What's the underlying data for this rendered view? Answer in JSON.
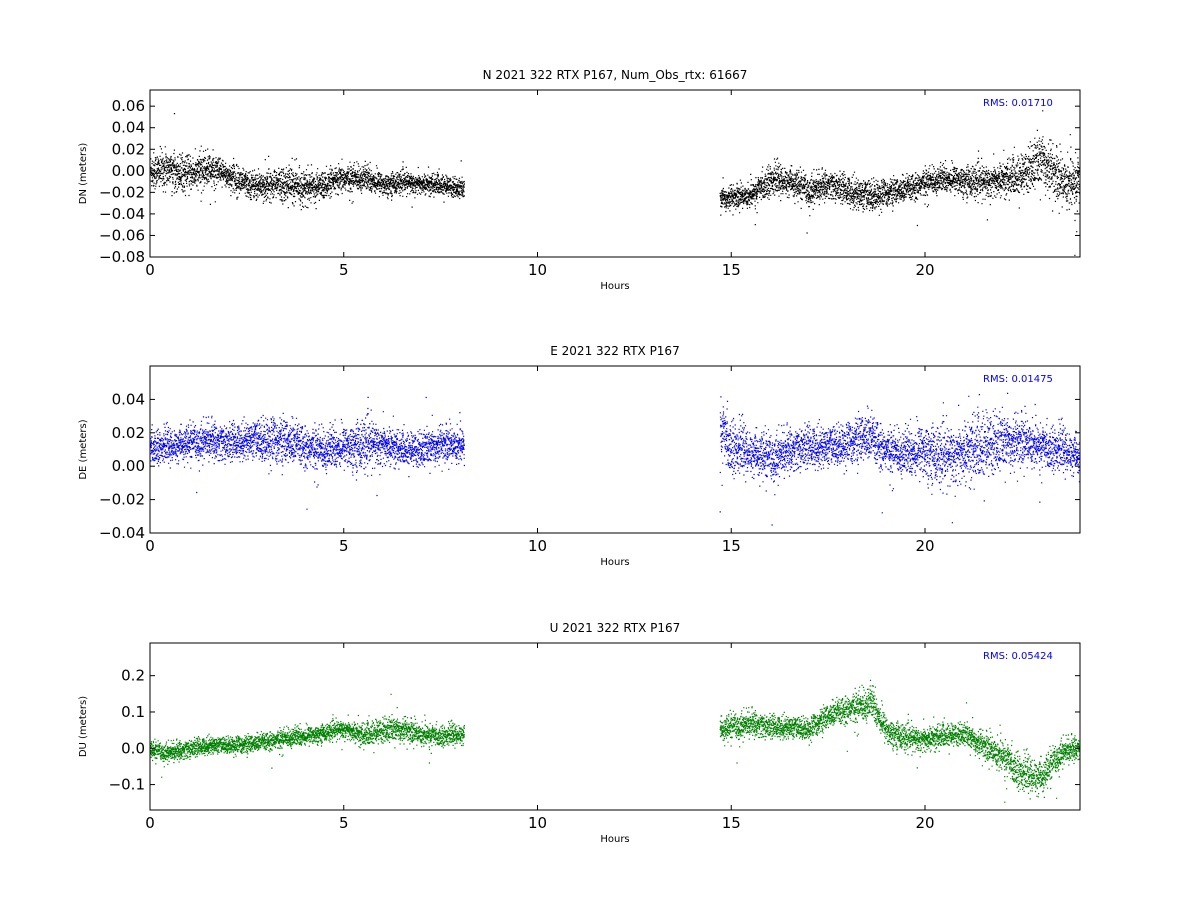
{
  "figure": {
    "background": "#ffffff"
  },
  "chart_data": [
    {
      "type": "scatter",
      "title": "N 2021 322 RTX  P167, Num_Obs_rtx: 61667",
      "xlabel": "Hours",
      "ylabel": "DN (meters)",
      "xlim": [
        0,
        24
      ],
      "ylim": [
        -0.08,
        0.075
      ],
      "xticks": [
        0,
        5,
        10,
        15,
        20
      ],
      "yticks": [
        -0.08,
        -0.06,
        -0.04,
        -0.02,
        0.0,
        0.02,
        0.04,
        0.06
      ],
      "ytick_labels": [
        "−0.08",
        "−0.06",
        "−0.04",
        "−0.02",
        "0.00",
        "0.02",
        "0.04",
        "0.06"
      ],
      "rms_label": "RMS:  0.01710",
      "rms_color": "#0000ff",
      "color": "#000000",
      "series": [
        {
          "segments": [
            {
              "x": [
                0,
                0.5,
                1,
                1.5,
                2,
                2.5,
                3,
                3.5,
                4,
                4.5,
                5,
                5.5,
                6,
                6.5,
                7,
                7.5,
                8.1
              ],
              "y": [
                0.0,
                0.002,
                -0.003,
                0.002,
                -0.004,
                -0.012,
                -0.013,
                -0.011,
                -0.015,
                -0.013,
                -0.007,
                -0.006,
                -0.012,
                -0.01,
                -0.012,
                -0.013,
                -0.017
              ],
              "spread": [
                0.022,
                0.022,
                0.02,
                0.02,
                0.016,
                0.016,
                0.018,
                0.02,
                0.019,
                0.016,
                0.016,
                0.016,
                0.014,
                0.013,
                0.012,
                0.012,
                0.012
              ]
            },
            {
              "x": [
                14.7,
                15.5,
                16,
                16.5,
                17,
                17.5,
                18,
                18.5,
                19,
                19.5,
                20,
                20.5,
                21,
                21.5,
                22,
                22.5,
                23,
                23.5,
                24
              ],
              "y": [
                -0.025,
                -0.022,
                -0.008,
                -0.01,
                -0.018,
                -0.012,
                -0.018,
                -0.023,
                -0.02,
                -0.017,
                -0.01,
                -0.007,
                -0.008,
                -0.01,
                -0.008,
                -0.004,
                0.012,
                -0.008,
                -0.012
              ],
              "spread": [
                0.014,
                0.014,
                0.018,
                0.016,
                0.018,
                0.016,
                0.018,
                0.02,
                0.016,
                0.016,
                0.016,
                0.016,
                0.018,
                0.02,
                0.02,
                0.024,
                0.034,
                0.03,
                0.034
              ]
            }
          ]
        }
      ]
    },
    {
      "type": "scatter",
      "title": "E 2021 322 RTX  P167",
      "xlabel": "Hours",
      "ylabel": "DE (meters)",
      "xlim": [
        0,
        24
      ],
      "ylim": [
        -0.04,
        0.06
      ],
      "xticks": [
        0,
        5,
        10,
        15,
        20
      ],
      "yticks": [
        -0.04,
        -0.02,
        0.0,
        0.02,
        0.04
      ],
      "ytick_labels": [
        "−0.04",
        "−0.02",
        "0.00",
        "0.02",
        "0.04"
      ],
      "rms_label": "RMS:  0.01475",
      "rms_color": "#0000ff",
      "color": "#0000ff",
      "series": [
        {
          "segments": [
            {
              "x": [
                0,
                0.5,
                1,
                1.5,
                2,
                2.5,
                3,
                3.5,
                4,
                4.5,
                5,
                5.5,
                6,
                6.5,
                7,
                7.5,
                8.1
              ],
              "y": [
                0.012,
                0.012,
                0.014,
                0.016,
                0.014,
                0.016,
                0.016,
                0.015,
                0.012,
                0.01,
                0.012,
                0.014,
                0.013,
                0.01,
                0.01,
                0.014,
                0.013
              ],
              "spread": [
                0.012,
                0.012,
                0.013,
                0.014,
                0.014,
                0.014,
                0.018,
                0.018,
                0.016,
                0.016,
                0.016,
                0.02,
                0.016,
                0.012,
                0.014,
                0.014,
                0.014
              ]
            },
            {
              "x": [
                14.7,
                15,
                15.5,
                16,
                16.5,
                17,
                17.5,
                18,
                18.5,
                19,
                19.5,
                20,
                20.5,
                21,
                21.5,
                22,
                22.5,
                23,
                23.5,
                24
              ],
              "y": [
                0.022,
                0.012,
                0.008,
                0.005,
                0.01,
                0.012,
                0.012,
                0.014,
                0.018,
                0.01,
                0.008,
                0.01,
                0.006,
                0.008,
                0.012,
                0.015,
                0.016,
                0.012,
                0.01,
                0.006
              ],
              "spread": [
                0.024,
                0.02,
                0.016,
                0.018,
                0.016,
                0.016,
                0.016,
                0.016,
                0.02,
                0.016,
                0.018,
                0.022,
                0.022,
                0.024,
                0.026,
                0.022,
                0.02,
                0.016,
                0.016,
                0.014
              ]
            }
          ]
        }
      ]
    },
    {
      "type": "scatter",
      "title": "U 2021 322 RTX  P167",
      "xlabel": "Hours",
      "ylabel": "DU (meters)",
      "xlim": [
        0,
        24
      ],
      "ylim": [
        -0.17,
        0.29
      ],
      "xticks": [
        0,
        5,
        10,
        15,
        20
      ],
      "yticks": [
        -0.1,
        0.0,
        0.1,
        0.2
      ],
      "ytick_labels": [
        "−0.1",
        "0.0",
        "0.1",
        "0.2"
      ],
      "rms_label": "RMS:  0.05424",
      "rms_color": "#0000ff",
      "color": "#008000",
      "series": [
        {
          "segments": [
            {
              "x": [
                0,
                0.5,
                1,
                1.5,
                2,
                2.5,
                3,
                3.5,
                4,
                4.5,
                5,
                5.5,
                6,
                6.5,
                7,
                7.5,
                8.1
              ],
              "y": [
                -0.005,
                -0.01,
                0.0,
                0.01,
                0.01,
                0.012,
                0.02,
                0.03,
                0.035,
                0.045,
                0.055,
                0.035,
                0.05,
                0.055,
                0.04,
                0.035,
                0.04
              ],
              "spread": [
                0.03,
                0.032,
                0.032,
                0.03,
                0.03,
                0.032,
                0.032,
                0.034,
                0.034,
                0.03,
                0.032,
                0.04,
                0.045,
                0.045,
                0.04,
                0.034,
                0.034
              ]
            },
            {
              "x": [
                14.7,
                15,
                15.5,
                16,
                16.5,
                17,
                17.5,
                18,
                18.4,
                18.6,
                19,
                19.5,
                20,
                20.5,
                21,
                21.5,
                22,
                22.5,
                23,
                23.5,
                24
              ],
              "y": [
                0.05,
                0.06,
                0.07,
                0.06,
                0.06,
                0.055,
                0.09,
                0.11,
                0.12,
                0.13,
                0.05,
                0.03,
                0.025,
                0.035,
                0.04,
                0.01,
                -0.02,
                -0.07,
                -0.08,
                -0.01,
                0.005
              ],
              "spread": [
                0.04,
                0.045,
                0.045,
                0.04,
                0.04,
                0.04,
                0.045,
                0.05,
                0.06,
                0.06,
                0.05,
                0.045,
                0.045,
                0.04,
                0.04,
                0.05,
                0.06,
                0.06,
                0.06,
                0.045,
                0.04
              ]
            }
          ]
        }
      ]
    }
  ]
}
